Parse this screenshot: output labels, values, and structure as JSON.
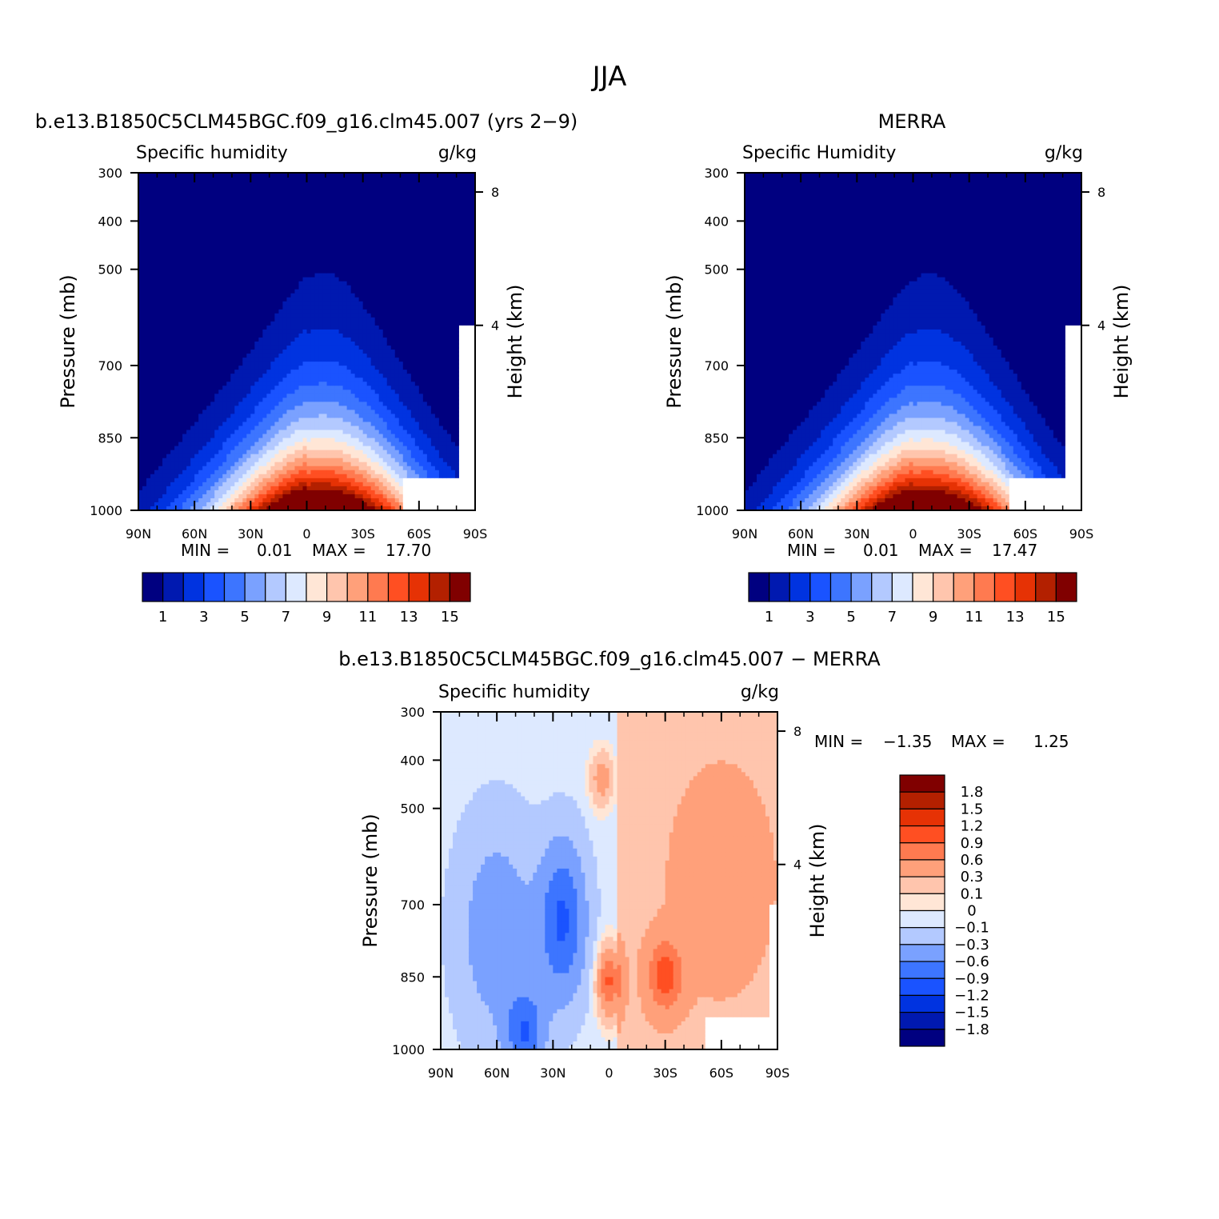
{
  "title": "JJA",
  "colors": {
    "sequential": [
      "#000080",
      "#0019b0",
      "#0033e0",
      "#1a53ff",
      "#3d75ff",
      "#7aa1ff",
      "#b3c9ff",
      "#dde9ff",
      "#ffe6d6",
      "#ffc5ad",
      "#ffa07a",
      "#ff7a50",
      "#ff4f22",
      "#e63205",
      "#b32000",
      "#800000"
    ],
    "diverging": [
      "#000080",
      "#0019b0",
      "#0033e0",
      "#1a53ff",
      "#3d75ff",
      "#7aa1ff",
      "#b3c9ff",
      "#dde9ff",
      "#ffe6d6",
      "#ffc5ad",
      "#ffa07a",
      "#ff7a50",
      "#ff4f22",
      "#e63205",
      "#b32000",
      "#800000"
    ]
  },
  "chart_data": [
    {
      "type": "contour",
      "title": "b.e13.B1850C5CLM45BGC.f09_g16.clm45.007 (yrs 2−9)",
      "left_label": "Specific humidity",
      "right_label": "g/kg",
      "xlabel": "",
      "ylabel": "Pressure (mb)",
      "y2label": "Height (km)",
      "x_ticks": [
        "90N",
        "60N",
        "30N",
        "0",
        "30S",
        "60S",
        "90S"
      ],
      "y_ticks": [
        "300",
        "400",
        "500",
        "700",
        "850",
        "1000"
      ],
      "y2_ticks": [
        "8",
        "4"
      ],
      "min_label": "MIN =",
      "min_value": "0.01",
      "max_label": "MAX =",
      "max_value": "17.70",
      "colorbar_labels": [
        "1",
        "3",
        "5",
        "7",
        "9",
        "11",
        "13",
        "15"
      ],
      "ylim": [
        1000,
        300
      ],
      "peak_value": 17.7,
      "peak_lat": 10
    },
    {
      "type": "contour",
      "title": "MERRA",
      "left_label": "Specific Humidity",
      "right_label": "g/kg",
      "xlabel": "",
      "ylabel": "Pressure (mb)",
      "y2label": "Height (km)",
      "x_ticks": [
        "90N",
        "60N",
        "30N",
        "0",
        "30S",
        "60S",
        "90S"
      ],
      "y_ticks": [
        "300",
        "400",
        "500",
        "700",
        "850",
        "1000"
      ],
      "y2_ticks": [
        "8",
        "4"
      ],
      "min_label": "MIN =",
      "min_value": "0.01",
      "max_label": "MAX =",
      "max_value": "17.47",
      "colorbar_labels": [
        "1",
        "3",
        "5",
        "7",
        "9",
        "11",
        "13",
        "15"
      ],
      "ylim": [
        1000,
        300
      ],
      "peak_value": 17.47,
      "peak_lat": 10
    },
    {
      "type": "contour",
      "title": "b.e13.B1850C5CLM45BGC.f09_g16.clm45.007 − MERRA",
      "left_label": "Specific humidity",
      "right_label": "g/kg",
      "xlabel": "",
      "ylabel": "Pressure (mb)",
      "y2label": "Height (km)",
      "x_ticks": [
        "90N",
        "60N",
        "30N",
        "0",
        "30S",
        "60S",
        "90S"
      ],
      "y_ticks": [
        "300",
        "400",
        "500",
        "700",
        "850",
        "1000"
      ],
      "y2_ticks": [
        "8",
        "4"
      ],
      "min_label": "MIN =",
      "min_value": "−1.35",
      "max_label": "MAX =",
      "max_value": "1.25",
      "colorbar_labels": [
        "1.8",
        "1.5",
        "1.2",
        "0.9",
        "0.6",
        "0.3",
        "0.1",
        "0",
        "−0.1",
        "−0.3",
        "−0.6",
        "−0.9",
        "−1.2",
        "−1.5",
        "−1.8"
      ],
      "ylim": [
        1000,
        300
      ],
      "contour_levels": [
        -1.8,
        -1.5,
        -1.2,
        -0.9,
        -0.6,
        -0.3,
        -0.1,
        0,
        0.1,
        0.3,
        0.6,
        0.9,
        1.2,
        1.5,
        1.8
      ]
    }
  ]
}
